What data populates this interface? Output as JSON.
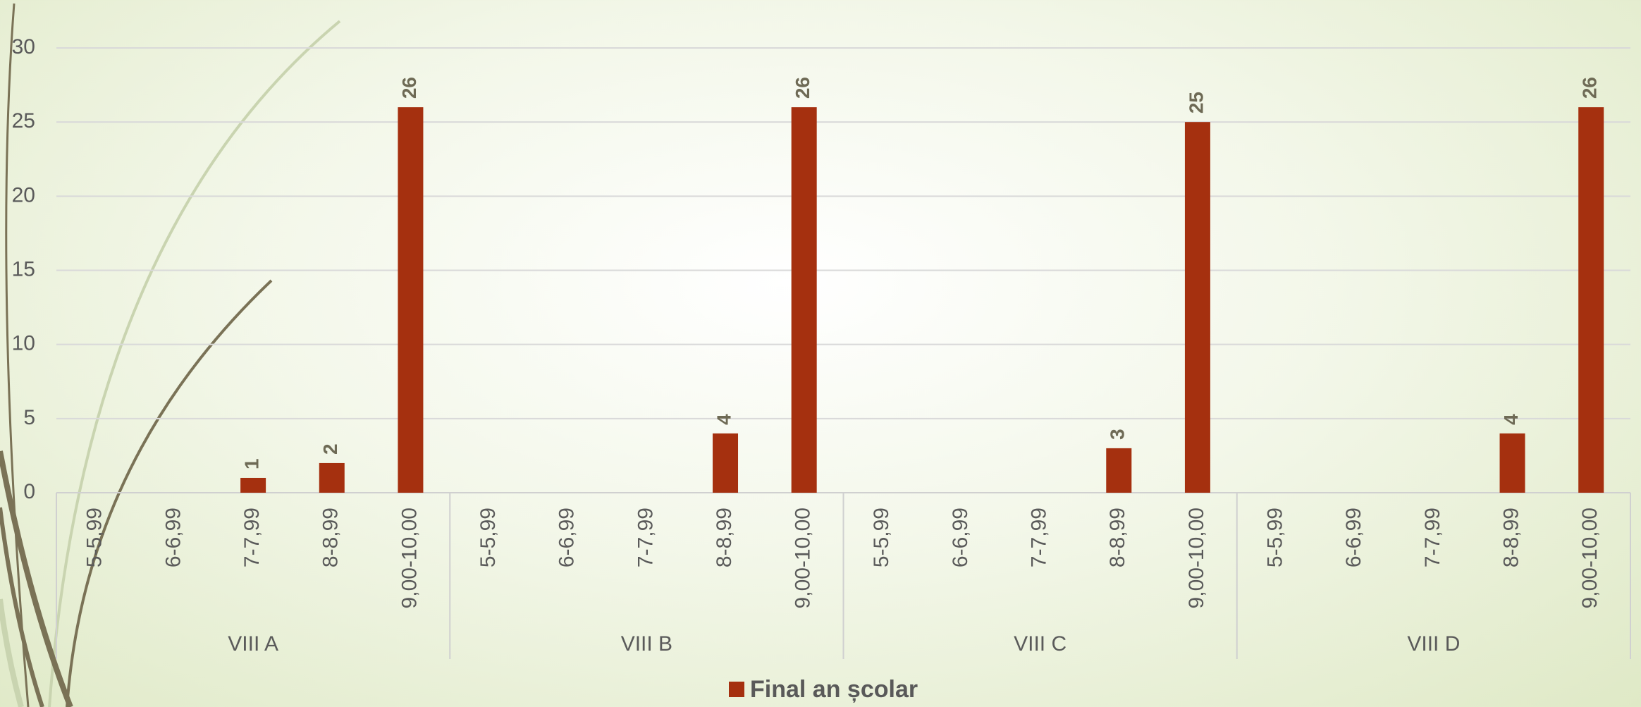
{
  "chart_data": {
    "type": "bar",
    "categories": [
      "5-5,99",
      "6-6,99",
      "7-7,99",
      "8-8,99",
      "9,00-10,00",
      "5-5,99",
      "6-6,99",
      "7-7,99",
      "8-8,99",
      "9,00-10,00",
      "5-5,99",
      "6-6,99",
      "7-7,99",
      "8-8,99",
      "9,00-10,00",
      "5-5,99",
      "6-6,99",
      "7-7,99",
      "8-8,99",
      "9,00-10,00"
    ],
    "groups": [
      "VIII A",
      "VIII B",
      "VIII C",
      "VIII D"
    ],
    "series": [
      {
        "name": "Final an școlar",
        "color": "#a5300f",
        "values": [
          null,
          null,
          1,
          2,
          26,
          null,
          null,
          null,
          4,
          26,
          null,
          null,
          null,
          3,
          25,
          null,
          null,
          null,
          4,
          26
        ]
      }
    ],
    "ylim": [
      0,
      30
    ],
    "yticks": [
      0,
      5,
      10,
      15,
      20,
      25,
      30
    ],
    "grid": true,
    "legend": "bottom"
  }
}
